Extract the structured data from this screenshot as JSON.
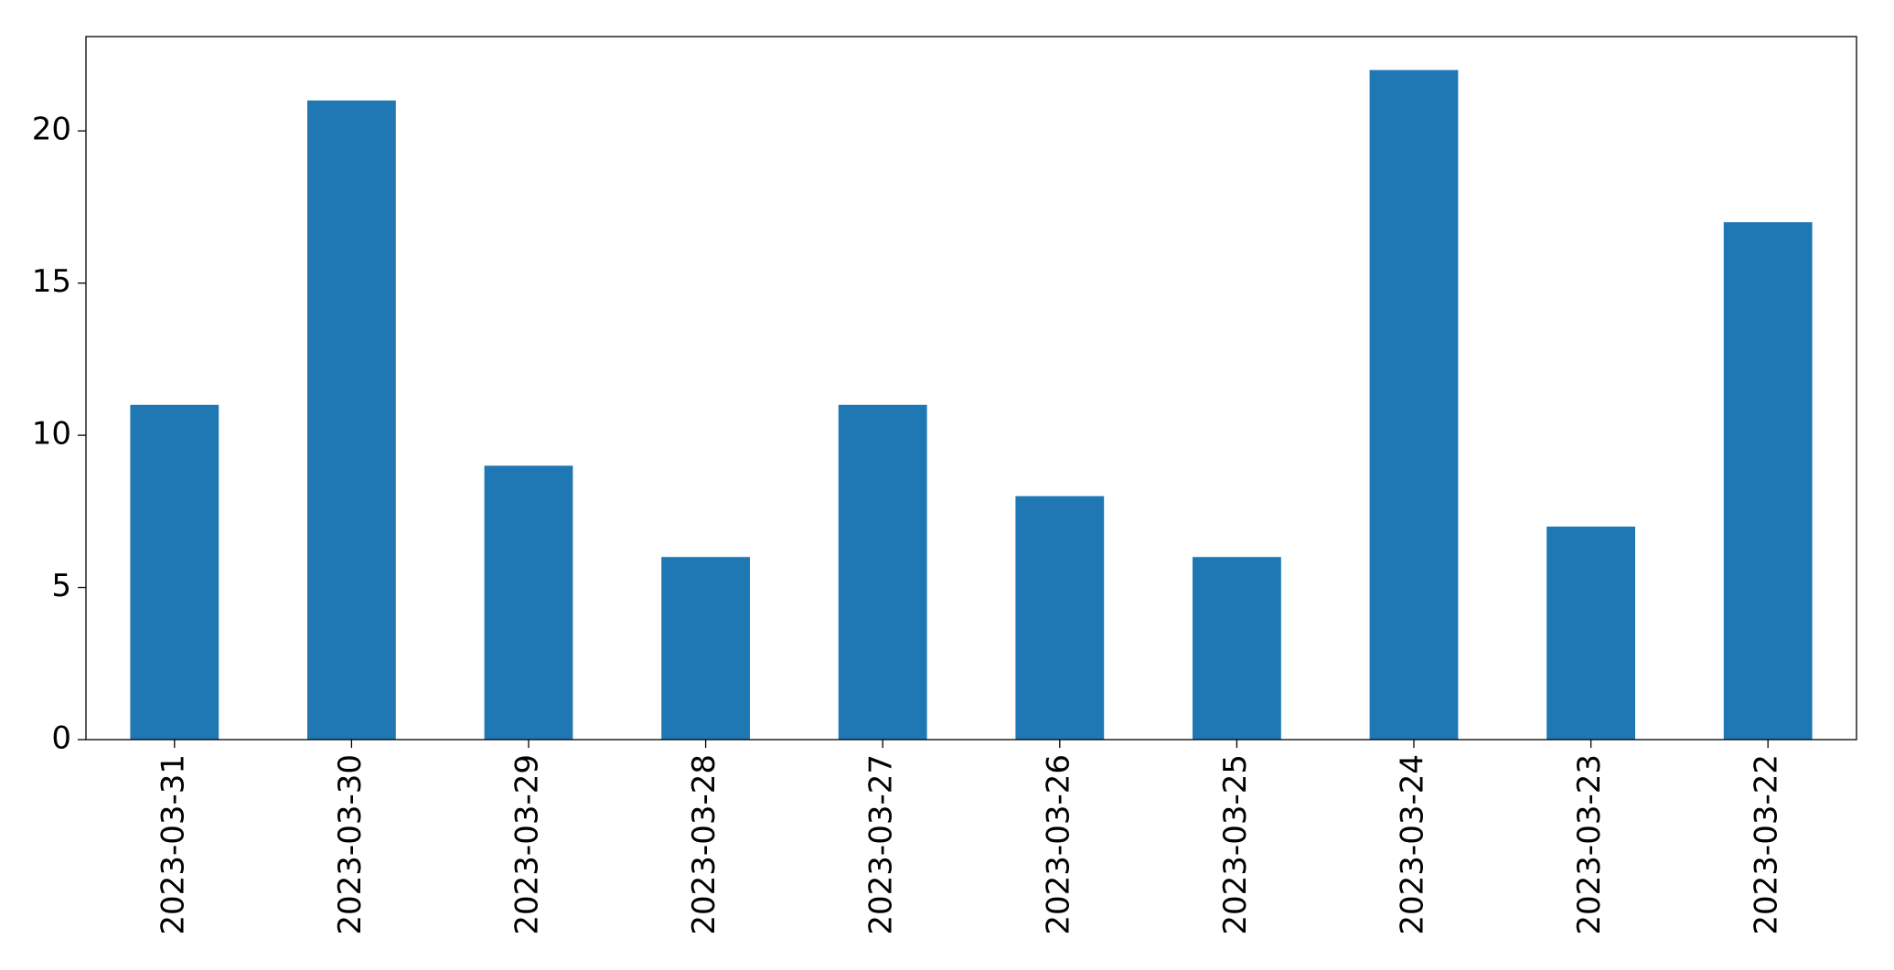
{
  "chart_data": {
    "type": "bar",
    "categories": [
      "2023-03-31",
      "2023-03-30",
      "2023-03-29",
      "2023-03-28",
      "2023-03-27",
      "2023-03-26",
      "2023-03-25",
      "2023-03-24",
      "2023-03-23",
      "2023-03-22"
    ],
    "values": [
      11,
      21,
      9,
      6,
      11,
      8,
      6,
      22,
      7,
      17
    ],
    "color": "#1f77b4",
    "ylim": [
      0,
      23.1
    ],
    "yticks": [
      0,
      5,
      10,
      15,
      20
    ],
    "grid": false
  }
}
